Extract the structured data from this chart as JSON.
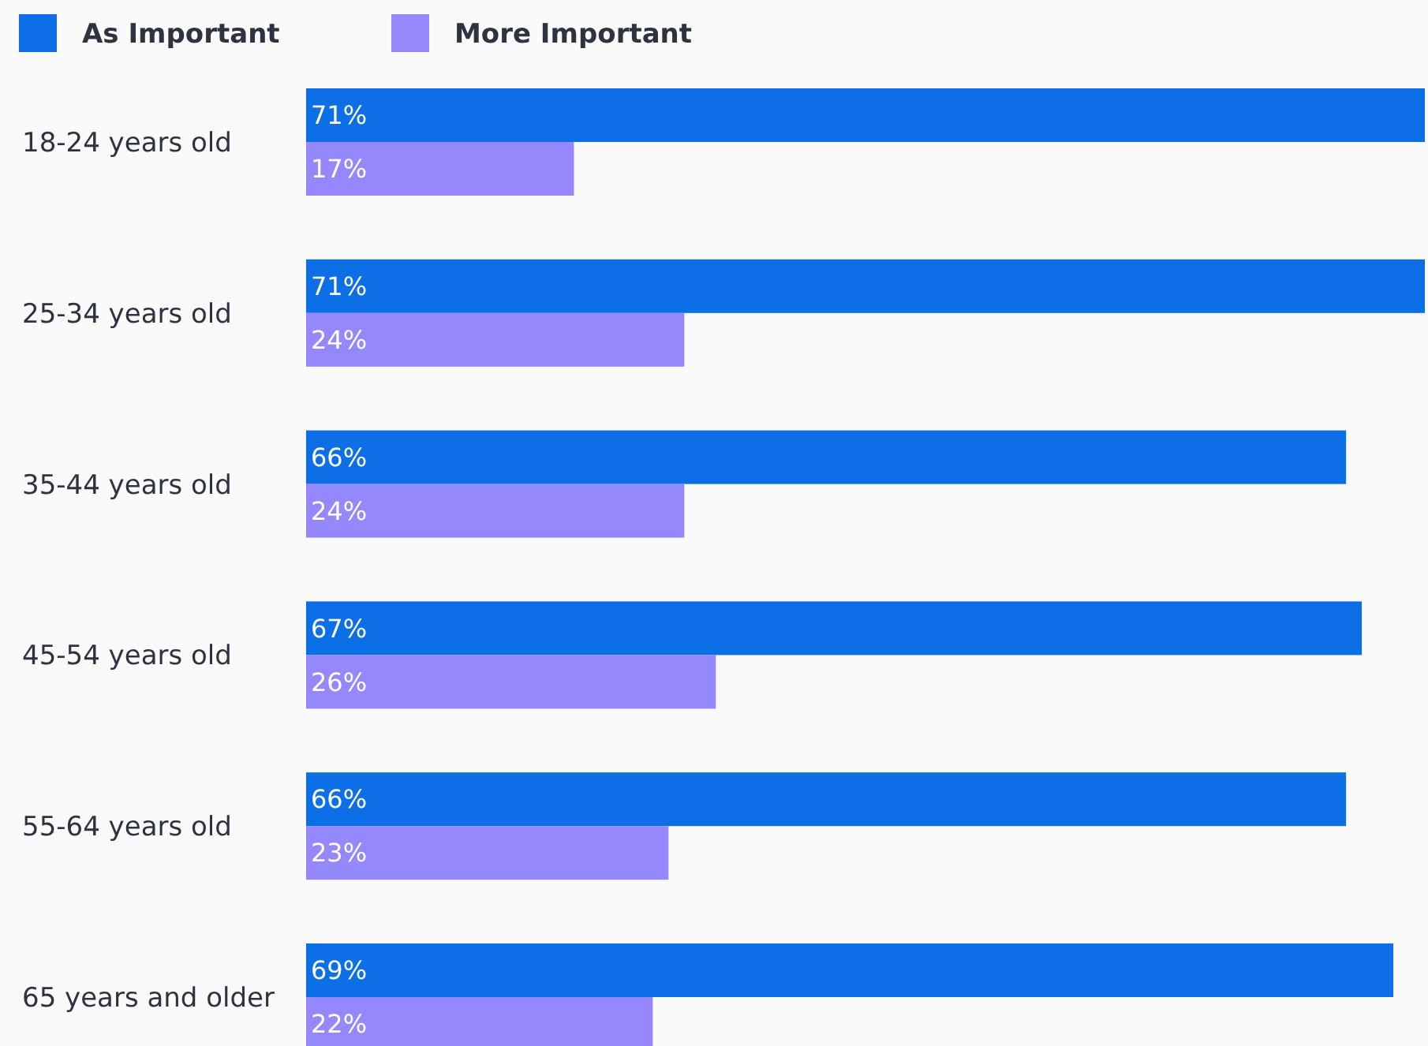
{
  "chart_data": {
    "type": "bar",
    "orientation": "horizontal",
    "legend": "top left",
    "grid": false,
    "categories": [
      "18-24 years old",
      "25-34 years old",
      "35-44 years old",
      "45-54 years old",
      "55-64 years old",
      "65 years and older"
    ],
    "series": [
      {
        "name": "As Important",
        "color": "#0c6fe6",
        "values": [
          71,
          71,
          66,
          67,
          66,
          69
        ],
        "value_labels": [
          "71%",
          "71%",
          "66%",
          "67%",
          "66%",
          "69%"
        ]
      },
      {
        "name": "More Important",
        "color": "#9488fc",
        "values": [
          17,
          24,
          24,
          26,
          23,
          22
        ],
        "value_labels": [
          "17%",
          "24%",
          "24%",
          "26%",
          "23%",
          "22%"
        ]
      }
    ]
  }
}
